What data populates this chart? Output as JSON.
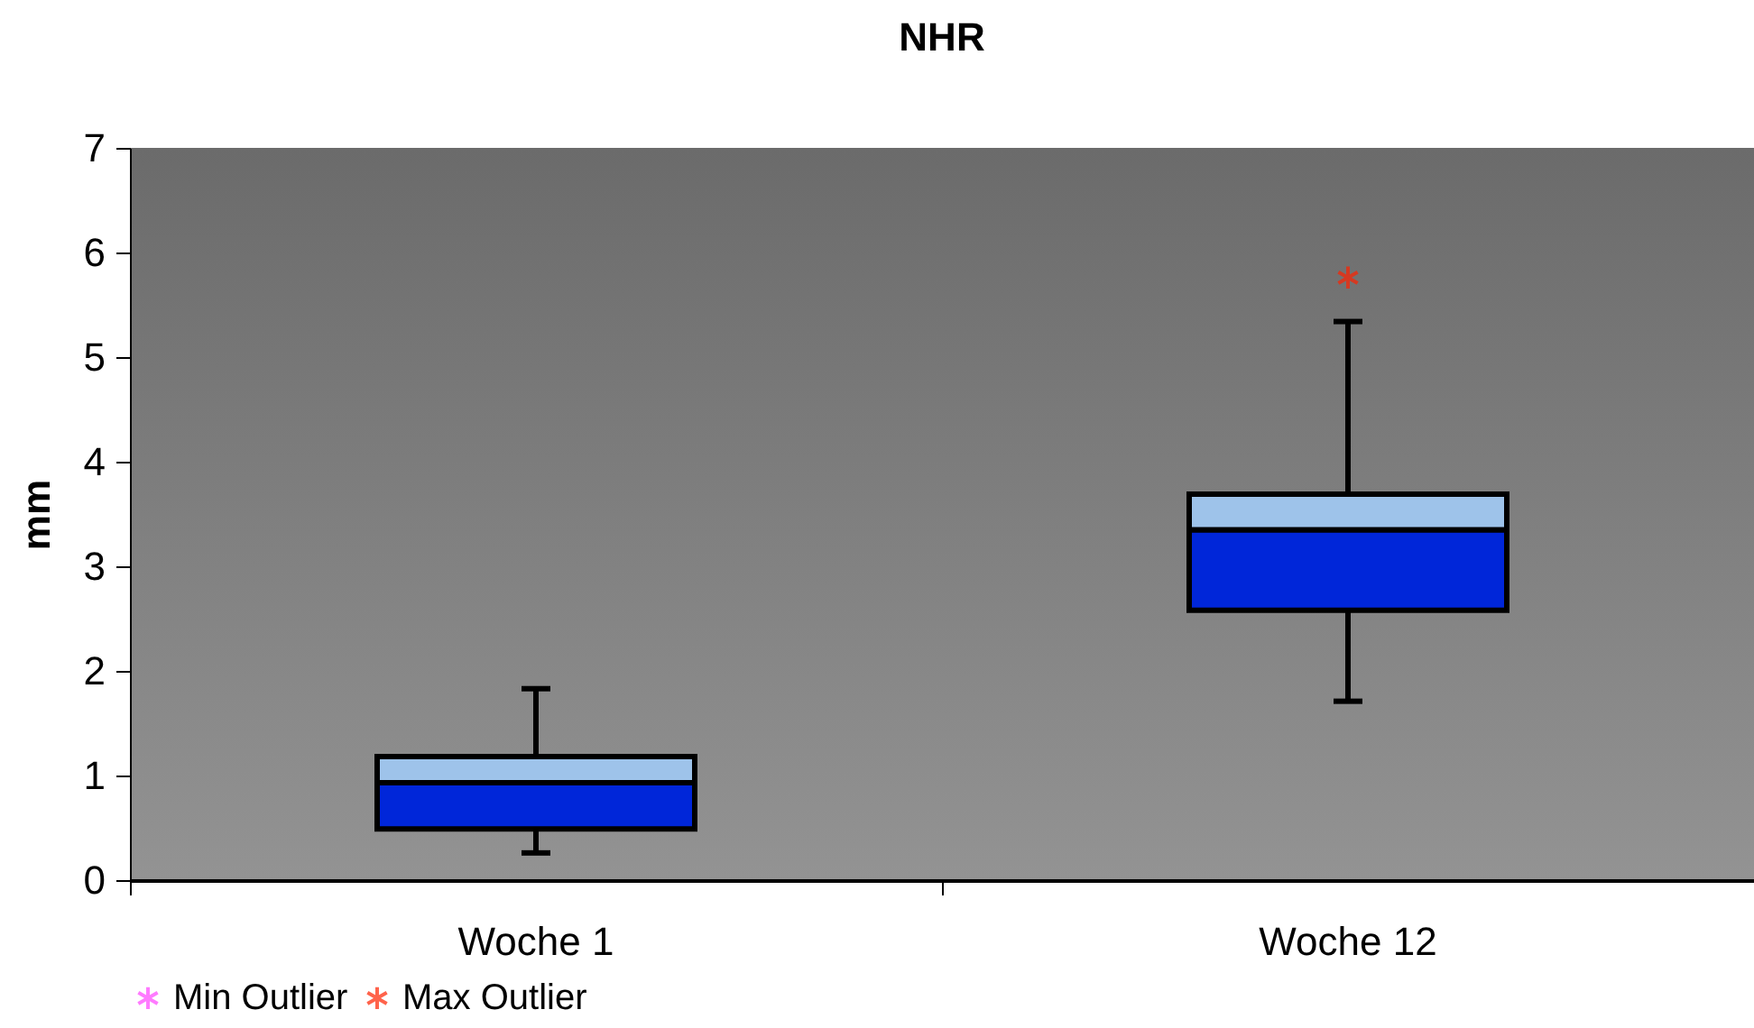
{
  "chart_data": {
    "type": "box",
    "title": "NHR",
    "ylabel": "mm",
    "categories": [
      "Woche 1",
      "Woche 12"
    ],
    "ylim": [
      0,
      7
    ],
    "yticks": [
      0,
      1,
      2,
      3,
      4,
      5,
      6,
      7
    ],
    "grid": false,
    "legend": "bottom",
    "marker": "cross",
    "series": [
      {
        "color": "#0026d9",
        "boxes": [
          {
            "low": 0.26,
            "q1": 0.49,
            "median": 0.93,
            "q3": 1.18,
            "high": 1.83
          },
          {
            "low": 1.71,
            "q1": 2.58,
            "median": 3.35,
            "q3": 3.69,
            "high": 5.34
          }
        ]
      },
      {
        "type": "scatter",
        "name": "Min Outlier",
        "color": "#ff44ff",
        "values": [
          null,
          null
        ]
      },
      {
        "type": "scatter",
        "name": "Max Outlier",
        "color": "#ff2200",
        "x": [
          "Woche 12"
        ],
        "values": [
          5.76
        ]
      }
    ]
  }
}
